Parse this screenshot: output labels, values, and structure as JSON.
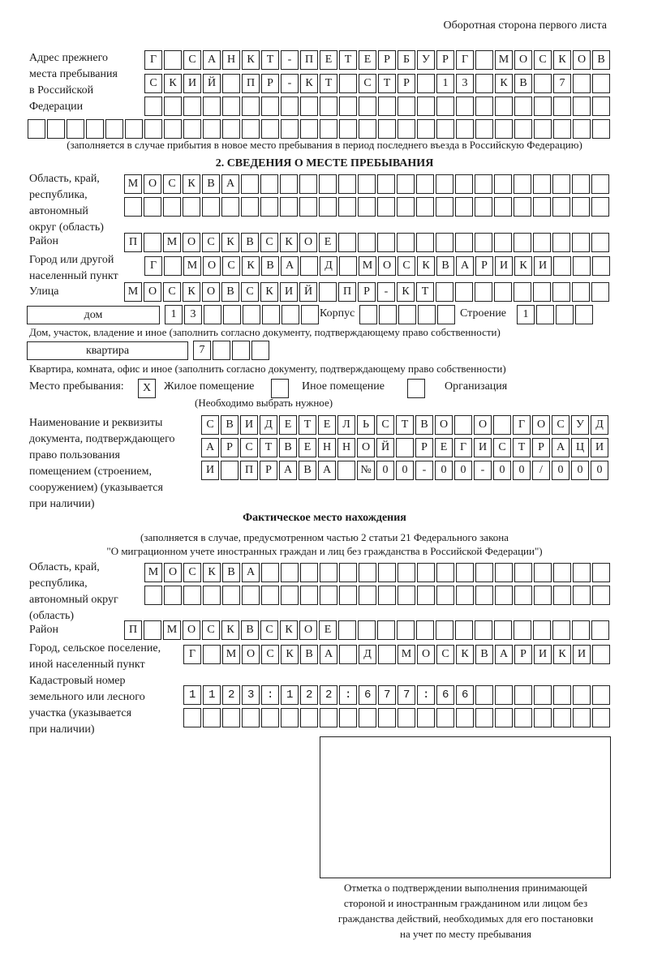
{
  "page_header": "Оборотная сторона первого листа",
  "previous_address": {
    "label": "Адрес прежнего\nместа пребывания\nв Российской\nФедерации",
    "rows": [
      "Г САНКТ-ПЕТЕРБУРГ МОСКОВ",
      "СКИЙ ПР-КТ СТР 13 КВ 7",
      "",
      ""
    ],
    "note": "(заполняется в случае прибытия в новое место пребывания в период последнего въезда в Российскую Федерацию)"
  },
  "section2": {
    "title": "2. СВЕДЕНИЯ О МЕСТЕ ПРЕБЫВАНИЯ",
    "region_label": "Область, край,\nреспублика,\nавтономный\nокруг (область)",
    "region_rows": [
      "МОСКВА",
      ""
    ],
    "district_label": "Район",
    "district": "П МОСКВСКОЕ",
    "city_label": "Город или другой\nнаселенный пункт",
    "city": "Г МОСКВА Д МОСКВАРИКИ",
    "street_label": "Улица",
    "street": "МОСКОВСКИЙ ПР-КТ",
    "house_type": "дом",
    "house_number": "13",
    "korpus_label": "Корпус",
    "korpus": "",
    "building_label": "Строение",
    "building": "1",
    "house_note": "Дом, участок, владение и иное (заполнить согласно документу, подтверждающему право собственности)",
    "apartment_type": "квартира",
    "apartment_number": "7",
    "apartment_note": "Квартира, комната, офис и иное (заполнить согласно документу, подтверждающему право собственности)",
    "stay_label": "Место пребывания:",
    "stay_options": [
      {
        "mark": "X",
        "label": "Жилое помещение"
      },
      {
        "mark": "",
        "label": "Иное помещение"
      },
      {
        "mark": "",
        "label": "Организация"
      }
    ],
    "stay_note": "(Необходимо выбрать нужное)",
    "document_label": "Наименование и реквизиты\nдокумента, подтверждающего\nправо пользования\nпомещением (строением,\nсооружением) (указывается\nпри наличии)",
    "document_rows": [
      "СВИДЕТЕЛЬСТВО О ГОСУД",
      "АРСТВЕННОЙ РЕГИСТРАЦИ",
      "И ПРАВА №00-00-00/000"
    ]
  },
  "actual_location": {
    "title": "Фактическое место нахождения",
    "note_line1": "(заполняется в случае, предусмотренном частью 2 статьи 21 Федерального закона",
    "note_line2": "\"О миграционном учете иностранных граждан и лиц без гражданства в Российской Федерации\")",
    "region_label": "Область, край,\nреспублика,\nавтономный округ\n(область)",
    "region_rows": [
      "МОСКВА",
      ""
    ],
    "district_label": "Район",
    "district": "П МОСКВСКОЕ",
    "city_label": "Город, сельское поселение,\nиной населенный пункт",
    "city": "Г МОСКВА Д МОСКВАРИКИ",
    "cadastral_label": "Кадастровый номер\nземельного или лесного\nучастка (указывается\nпри наличии)",
    "cadastral_rows": [
      "1123:122:677:66",
      ""
    ]
  },
  "confirmation_caption": "Отметка о подтверждении выполнения принимающей\nстороной и иностранным гражданином или лицом без\nгражданства действий, необходимых для его постановки\nна учет по месту пребывания"
}
